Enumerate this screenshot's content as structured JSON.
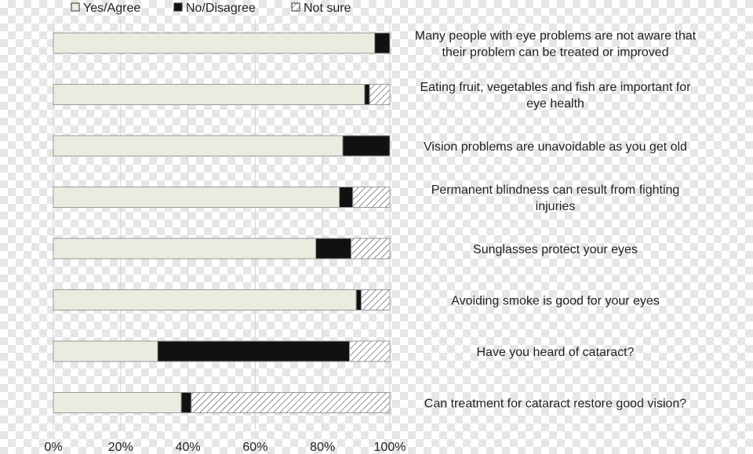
{
  "chart_data": {
    "type": "bar",
    "orientation": "horizontal",
    "stacked": true,
    "categories": [
      [
        "Many people with eye problems are not aware that",
        "their problem can be treated or improved"
      ],
      [
        "Eating fruit, vegetables and fish are important for",
        "eye health"
      ],
      [
        "Vision problems are unavoidable as you get old"
      ],
      [
        "Permanent blindness can result from fighting",
        "injuries"
      ],
      [
        "Sunglasses protect your eyes"
      ],
      [
        "Avoiding smoke is good for your eyes"
      ],
      [
        "Have you heard of cataract?"
      ],
      [
        "Can treatment for cataract restore good vision?"
      ]
    ],
    "series": [
      {
        "name": "Yes/Agree",
        "values": [
          95.5,
          92.5,
          86,
          85,
          78,
          90,
          31,
          38
        ],
        "color": "#ebebe0",
        "pattern": "solid"
      },
      {
        "name": "No/Disagree",
        "values": [
          4.5,
          1.5,
          14,
          4,
          10.5,
          1.5,
          57,
          3
        ],
        "color": "#111111",
        "pattern": "solid"
      },
      {
        "name": "Not sure",
        "values": [
          0,
          6,
          0,
          11,
          11.5,
          8.5,
          12,
          59
        ],
        "color": "#ffffff",
        "pattern": "hatch"
      }
    ],
    "xlim": [
      0,
      100
    ],
    "xticks": [
      "0%",
      "20%",
      "40%",
      "60%",
      "80%",
      "100%"
    ],
    "legend": "top",
    "grid": "vertical"
  }
}
